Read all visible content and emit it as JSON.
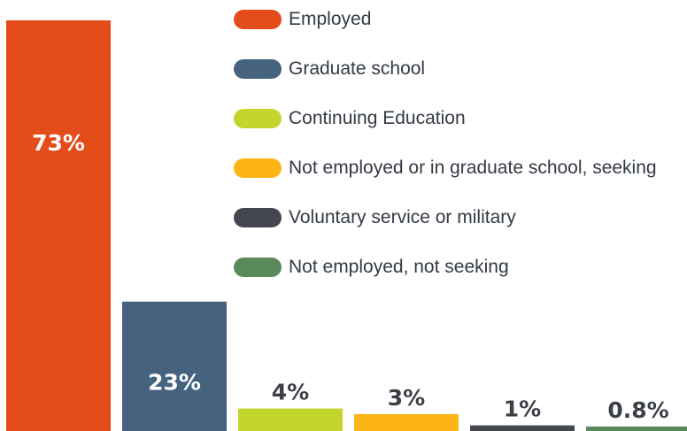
{
  "chart_data": {
    "type": "bar",
    "categories": [
      "Employed",
      "Graduate school",
      "Continuing Education",
      "Not employed or in graduate school, seeking",
      "Voluntary service or military",
      "Not employed, not seeking"
    ],
    "values": [
      73,
      23,
      4,
      3,
      1,
      0.8
    ],
    "data_labels": [
      "73%",
      "23%",
      "4%",
      "3%",
      "1%",
      "0.8%"
    ],
    "colors": [
      "#e44d1a",
      "#45637f",
      "#c3d62e",
      "#fdb515",
      "#44474e",
      "#5a8a5b"
    ],
    "title": "",
    "xlabel": "",
    "ylabel": "",
    "ylim": [
      0,
      73
    ],
    "grid": false,
    "legend_position": "top-right"
  },
  "legend": [
    {
      "label": "Employed",
      "color": "#e44d1a"
    },
    {
      "label": "Graduate school",
      "color": "#45637f"
    },
    {
      "label": "Continuing Education",
      "color": "#c3d62e"
    },
    {
      "label": "Not employed or in graduate school, seeking",
      "color": "#fdb515"
    },
    {
      "label": "Voluntary service or military",
      "color": "#44474e"
    },
    {
      "label": "Not employed, not seeking",
      "color": "#5a8a5b"
    }
  ]
}
